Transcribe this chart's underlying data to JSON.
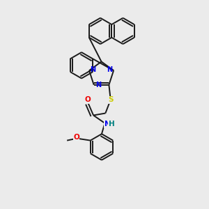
{
  "background_color": "#ebebeb",
  "bond_color": "#1a1a1a",
  "atom_colors": {
    "N": "#0000ee",
    "O": "#ee0000",
    "S": "#cccc00",
    "H": "#008080",
    "C": "#1a1a1a"
  },
  "figsize": [
    3.0,
    3.0
  ],
  "dpi": 100,
  "lw": 1.4,
  "ring_r": 0.06,
  "font_size": 7.0
}
